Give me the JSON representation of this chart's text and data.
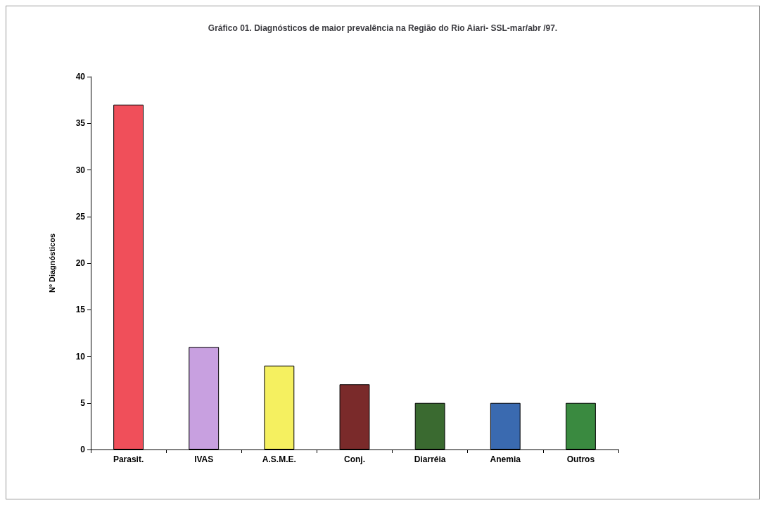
{
  "chart_data": {
    "type": "bar",
    "title": "Gráfico 01. Diagnósticos de maior prevalência na Região do Rio Aiari- SSL-mar/abr /97.",
    "ylabel": "Nº Diagnósticos",
    "categories": [
      "Parasit.",
      "IVAS",
      "A.S.M.E.",
      "Conj.",
      "Diarréia",
      "Anemia",
      "Outros"
    ],
    "values": [
      37,
      11,
      9,
      7,
      5,
      5,
      5
    ],
    "colors": [
      "#f04f5a",
      "#c8a0e0",
      "#f5f060",
      "#7a2a2a",
      "#3a6a30",
      "#3a6ab0",
      "#3a8a40"
    ],
    "ylim": [
      0,
      40
    ],
    "yticks": [
      0,
      5,
      10,
      15,
      20,
      25,
      30,
      35,
      40
    ],
    "grid": false
  }
}
